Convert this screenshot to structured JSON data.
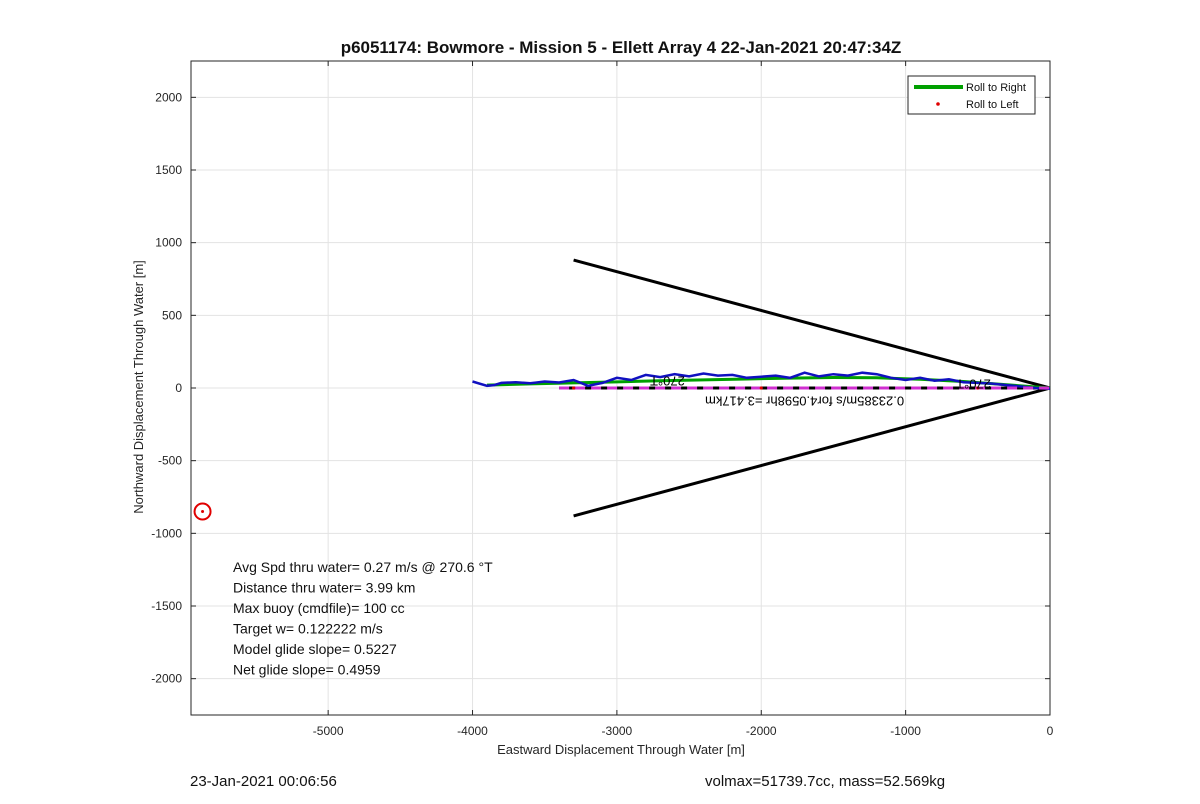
{
  "chart_data": {
    "type": "line",
    "title": "p6051174: Bowmore - Mission 5 - Ellett Array 4 22-Jan-2021 20:47:34Z",
    "xlabel": "Eastward Displacement Through Water [m]",
    "ylabel": "Northward Displacement Through Water [m]",
    "xlim": [
      -5950,
      0
    ],
    "ylim": [
      -2250,
      2250
    ],
    "xticks": [
      -5000,
      -4000,
      -3000,
      -2000,
      -1000,
      0
    ],
    "yticks": [
      2000,
      1500,
      1000,
      500,
      0,
      -500,
      -1000,
      -1500,
      -2000
    ],
    "grid": true,
    "legend": {
      "position": "top-right",
      "entries": [
        {
          "label": "Roll to Right",
          "color": "#00a000",
          "style": "line"
        },
        {
          "label": "Roll to Left",
          "color": "#e00000",
          "style": "dot"
        }
      ]
    },
    "series": [
      {
        "name": "Roll to Right",
        "color": "#00a000",
        "x": [
          -3900,
          -3600,
          -3300,
          -3000,
          -2700,
          -2400,
          -2100,
          -1800,
          -1500,
          -1200,
          -900,
          -600,
          -300,
          0
        ],
        "y": [
          20,
          28,
          35,
          42,
          50,
          56,
          62,
          68,
          72,
          70,
          60,
          45,
          22,
          0
        ]
      },
      {
        "name": "Roll to Left",
        "color": "#e00000",
        "x": [
          -3300,
          -2000,
          -500
        ],
        "y": [
          0,
          0,
          0
        ]
      },
      {
        "name": "",
        "color": "#1010c0",
        "x": [
          -4000,
          -3900,
          -3850,
          -3800,
          -3700,
          -3600,
          -3500,
          -3400,
          -3300,
          -3200,
          -3100,
          -3000,
          -2900,
          -2800,
          -2700,
          -2600,
          -2500,
          -2400,
          -2300,
          -2200,
          -2100,
          -2000,
          -1900,
          -1800,
          -1700,
          -1600,
          -1500,
          -1400,
          -1300,
          -1200,
          -1100,
          -1000,
          -900,
          -800,
          -700,
          -600,
          -500,
          -400,
          -300,
          -200,
          -100,
          0
        ],
        "y": [
          45,
          15,
          20,
          35,
          40,
          32,
          45,
          38,
          55,
          15,
          35,
          70,
          55,
          90,
          75,
          95,
          80,
          100,
          85,
          90,
          70,
          78,
          85,
          70,
          105,
          80,
          95,
          85,
          105,
          95,
          70,
          55,
          70,
          50,
          60,
          40,
          35,
          30,
          20,
          10,
          0,
          -5
        ]
      },
      {
        "name": "",
        "color": "#d030d0",
        "x": [
          -3400,
          0
        ],
        "y": [
          0,
          0
        ]
      }
    ],
    "fan_lines": [
      {
        "x": [
          -3300,
          0
        ],
        "y": [
          880,
          0
        ]
      },
      {
        "x": [
          -3300,
          0
        ],
        "y": [
          -880,
          0
        ]
      }
    ],
    "marker": {
      "x": -5870,
      "y": -850,
      "color": "#e00000"
    },
    "annotations": [
      {
        "text": "270°T",
        "x": -2650,
        "y": 80,
        "rotated": true
      },
      {
        "text": "270°T",
        "x": -530,
        "y": 60,
        "rotated": true
      },
      {
        "text": "0.23385m/s for4.0598hr =3.417km",
        "x": -1700,
        "y": -60,
        "rotated": true
      }
    ],
    "stats": [
      "Avg Spd thru water=  0.27 m/s @ 270.6 °T",
      "Distance thru water=  3.99 km",
      "Max buoy (cmdfile)= 100 cc",
      "Target w= 0.122222 m/s",
      "Model glide slope= 0.5227",
      "Net glide slope= 0.4959"
    ]
  },
  "footer": {
    "timestamp": "23-Jan-2021 00:06:56",
    "vehicle_info": "volmax=51739.7cc, mass=52.569kg"
  }
}
